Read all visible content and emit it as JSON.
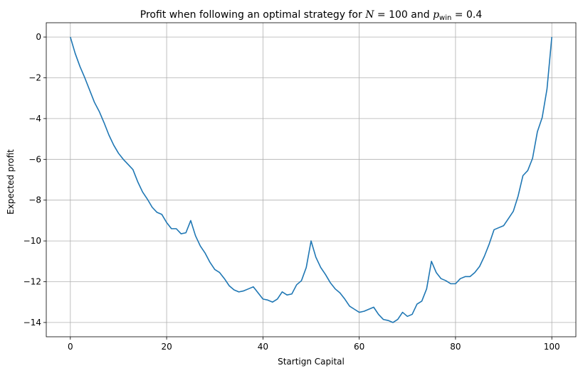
{
  "chart_data": {
    "type": "line",
    "title": {
      "prefix": "Profit when following an optimal strategy for ",
      "N_symbol": "N",
      "N_eq": " = 100",
      "connector": " and ",
      "p_symbol": "p",
      "p_subscript": "win",
      "p_eq": " = 0.4"
    },
    "xlabel": "Startign Capital",
    "ylabel": "Expected profit",
    "xlim": [
      -5,
      105
    ],
    "ylim": [
      -14.7,
      0.7
    ],
    "xticks": [
      0,
      20,
      40,
      60,
      80,
      100
    ],
    "yticks": [
      0,
      -2,
      -4,
      -6,
      -8,
      -10,
      -12,
      -14
    ],
    "grid": true,
    "series": [
      {
        "color": "#1f77b4",
        "x": [
          0,
          1,
          2,
          3,
          4,
          5,
          6,
          7,
          8,
          9,
          10,
          11,
          12,
          13,
          14,
          15,
          16,
          17,
          18,
          19,
          20,
          21,
          22,
          23,
          24,
          25,
          26,
          27,
          28,
          29,
          30,
          31,
          32,
          33,
          34,
          35,
          36,
          37,
          38,
          39,
          40,
          41,
          42,
          43,
          44,
          45,
          46,
          47,
          48,
          49,
          50,
          51,
          52,
          53,
          54,
          55,
          56,
          57,
          58,
          59,
          60,
          61,
          62,
          63,
          64,
          65,
          66,
          67,
          68,
          69,
          70,
          71,
          72,
          73,
          74,
          75,
          76,
          77,
          78,
          79,
          80,
          81,
          82,
          83,
          84,
          85,
          86,
          87,
          88,
          89,
          90,
          91,
          92,
          93,
          94,
          95,
          96,
          97,
          98,
          99,
          100
        ],
        "y": [
          0,
          -0.8,
          -1.45,
          -2.0,
          -2.6,
          -3.2,
          -3.65,
          -4.2,
          -4.8,
          -5.3,
          -5.7,
          -6.0,
          -6.25,
          -6.5,
          -7.1,
          -7.6,
          -7.95,
          -8.35,
          -8.6,
          -8.7,
          -9.1,
          -9.4,
          -9.4,
          -9.65,
          -9.6,
          -9.0,
          -9.75,
          -10.25,
          -10.6,
          -11.05,
          -11.4,
          -11.55,
          -11.85,
          -12.2,
          -12.4,
          -12.5,
          -12.45,
          -12.35,
          -12.25,
          -12.55,
          -12.85,
          -12.9,
          -13.0,
          -12.85,
          -12.5,
          -12.65,
          -12.6,
          -12.15,
          -11.95,
          -11.3,
          -10.0,
          -10.8,
          -11.3,
          -11.65,
          -12.05,
          -12.35,
          -12.55,
          -12.85,
          -13.2,
          -13.35,
          -13.5,
          -13.45,
          -13.35,
          -13.25,
          -13.6,
          -13.85,
          -13.9,
          -14.0,
          -13.85,
          -13.5,
          -13.7,
          -13.6,
          -13.1,
          -12.95,
          -12.35,
          -11.0,
          -11.55,
          -11.85,
          -11.95,
          -12.1,
          -12.1,
          -11.85,
          -11.75,
          -11.75,
          -11.55,
          -11.25,
          -10.75,
          -10.15,
          -9.45,
          -9.35,
          -9.25,
          -8.9,
          -8.55,
          -7.8,
          -6.8,
          -6.55,
          -5.95,
          -4.65,
          -3.95,
          -2.55,
          0
        ]
      }
    ]
  }
}
